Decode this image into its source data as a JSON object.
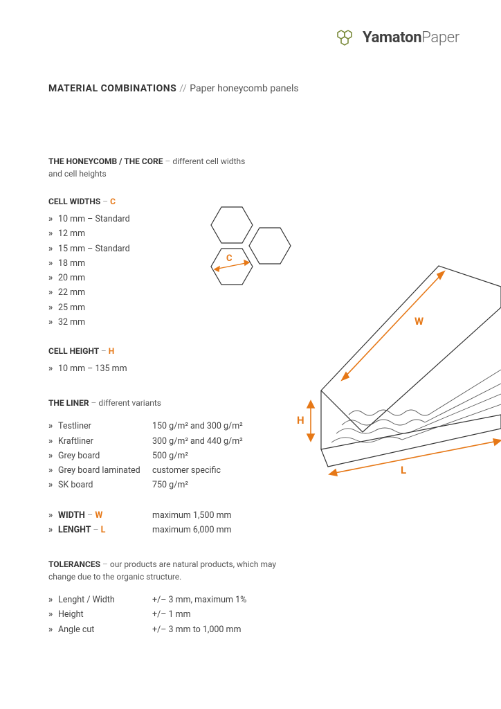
{
  "logo": {
    "bold": "Yamaton",
    "light": "Paper",
    "icon_stroke": "#7a8a3a"
  },
  "title": {
    "main": "MATERIAL COMBINATIONS",
    "sep": "//",
    "sub": "Paper honeycomb panels"
  },
  "colors": {
    "accent": "#e67817",
    "text": "#333333",
    "muted": "#555555",
    "light": "#999999"
  },
  "honeycomb": {
    "heading_bold": "THE HONEYCOMB / THE CORE",
    "heading_rest": "different cell widths and cell heights"
  },
  "cell_widths": {
    "heading": "CELL WIDTHS",
    "letter": "C",
    "items": [
      "10 mm – Standard",
      "12 mm",
      "15 mm – Standard",
      "18 mm",
      "20 mm",
      "22 mm",
      "25 mm",
      "32 mm"
    ]
  },
  "cell_height": {
    "heading": "CELL HEIGHT",
    "letter": "H",
    "items": [
      "10 mm – 135 mm"
    ]
  },
  "liner": {
    "heading_bold": "THE LINER",
    "heading_rest": "different variants",
    "rows": [
      {
        "name": "Testliner",
        "spec": "150 g/m² and 300 g/m²"
      },
      {
        "name": "Kraftliner",
        "spec": "300 g/m² and 440 g/m²"
      },
      {
        "name": "Grey board",
        "spec": "500 g/m²"
      },
      {
        "name": "Grey board laminated",
        "spec": "customer specific"
      },
      {
        "name": "SK board",
        "spec": "750 g/m²"
      }
    ]
  },
  "dims": {
    "width": {
      "label": "WIDTH",
      "letter": "W",
      "value": "maximum 1,500 mm"
    },
    "length": {
      "label": "LENGHT",
      "letter": "L",
      "value": "maximum 6,000 mm"
    }
  },
  "tolerances": {
    "heading_bold": "TOLERANCES",
    "heading_rest": "our products are natural products, which may change due to the organic structure.",
    "rows": [
      {
        "name": "Lenght / Width",
        "spec": "+/– 3 mm, maximum 1%"
      },
      {
        "name": "Height",
        "spec": "+/– 1 mm"
      },
      {
        "name": "Angle cut",
        "spec": "+/– 3 mm to 1,000 mm"
      }
    ]
  },
  "diagram": {
    "c_label": "C",
    "w_label": "W",
    "h_label": "H",
    "l_label": "L"
  }
}
